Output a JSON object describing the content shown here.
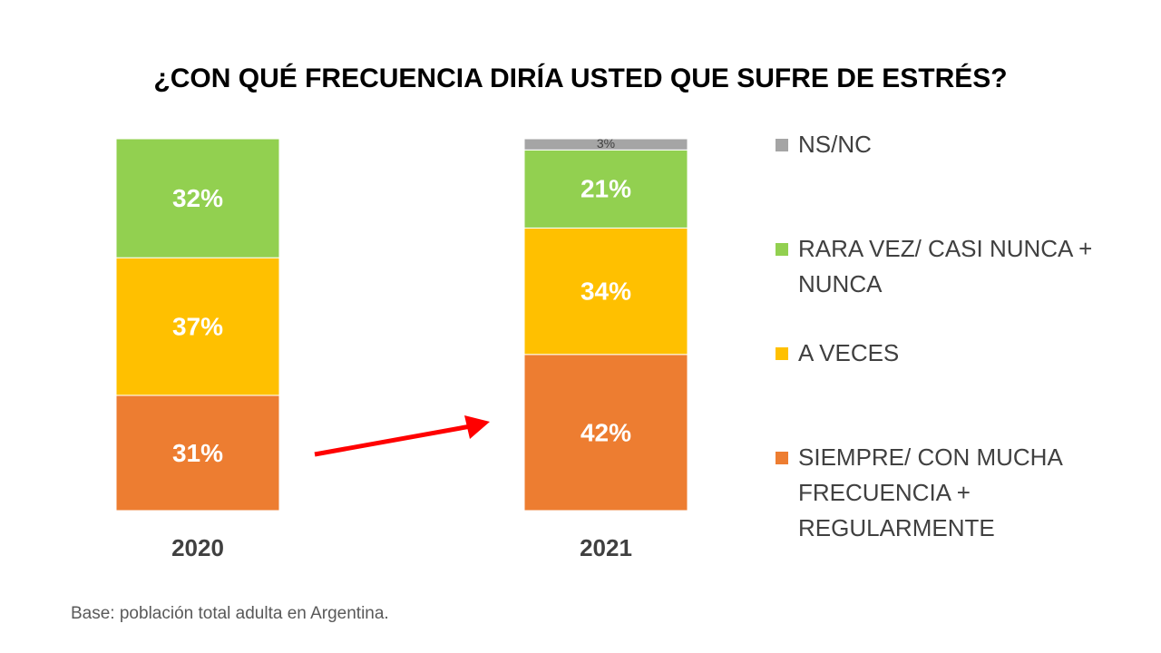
{
  "chart_data": {
    "type": "stacked-bar",
    "title": "¿CON QUÉ FRECUENCIA DIRÍA USTED QUE SUFRE DE ESTRÉS?",
    "categories": [
      "2020",
      "2021"
    ],
    "series": [
      {
        "name": "SIEMPRE/ CON MUCHA FRECUENCIA + REGULARMENTE",
        "color": "#ED7D31",
        "values": [
          31,
          42
        ],
        "value_labels": [
          "31%",
          "42%"
        ]
      },
      {
        "name": "A VECES",
        "color": "#FFC000",
        "values": [
          37,
          34
        ],
        "value_labels": [
          "37%",
          "34%"
        ]
      },
      {
        "name": "RARA VEZ/ CASI NUNCA + NUNCA",
        "color": "#92D050",
        "values": [
          32,
          21
        ],
        "value_labels": [
          "32%",
          "21%"
        ]
      },
      {
        "name": "NS/NC",
        "color": "#A5A5A5",
        "values": [
          null,
          3
        ],
        "value_labels": [
          null,
          "3%"
        ]
      }
    ],
    "note": "Base: población total adulta en Argentina."
  }
}
